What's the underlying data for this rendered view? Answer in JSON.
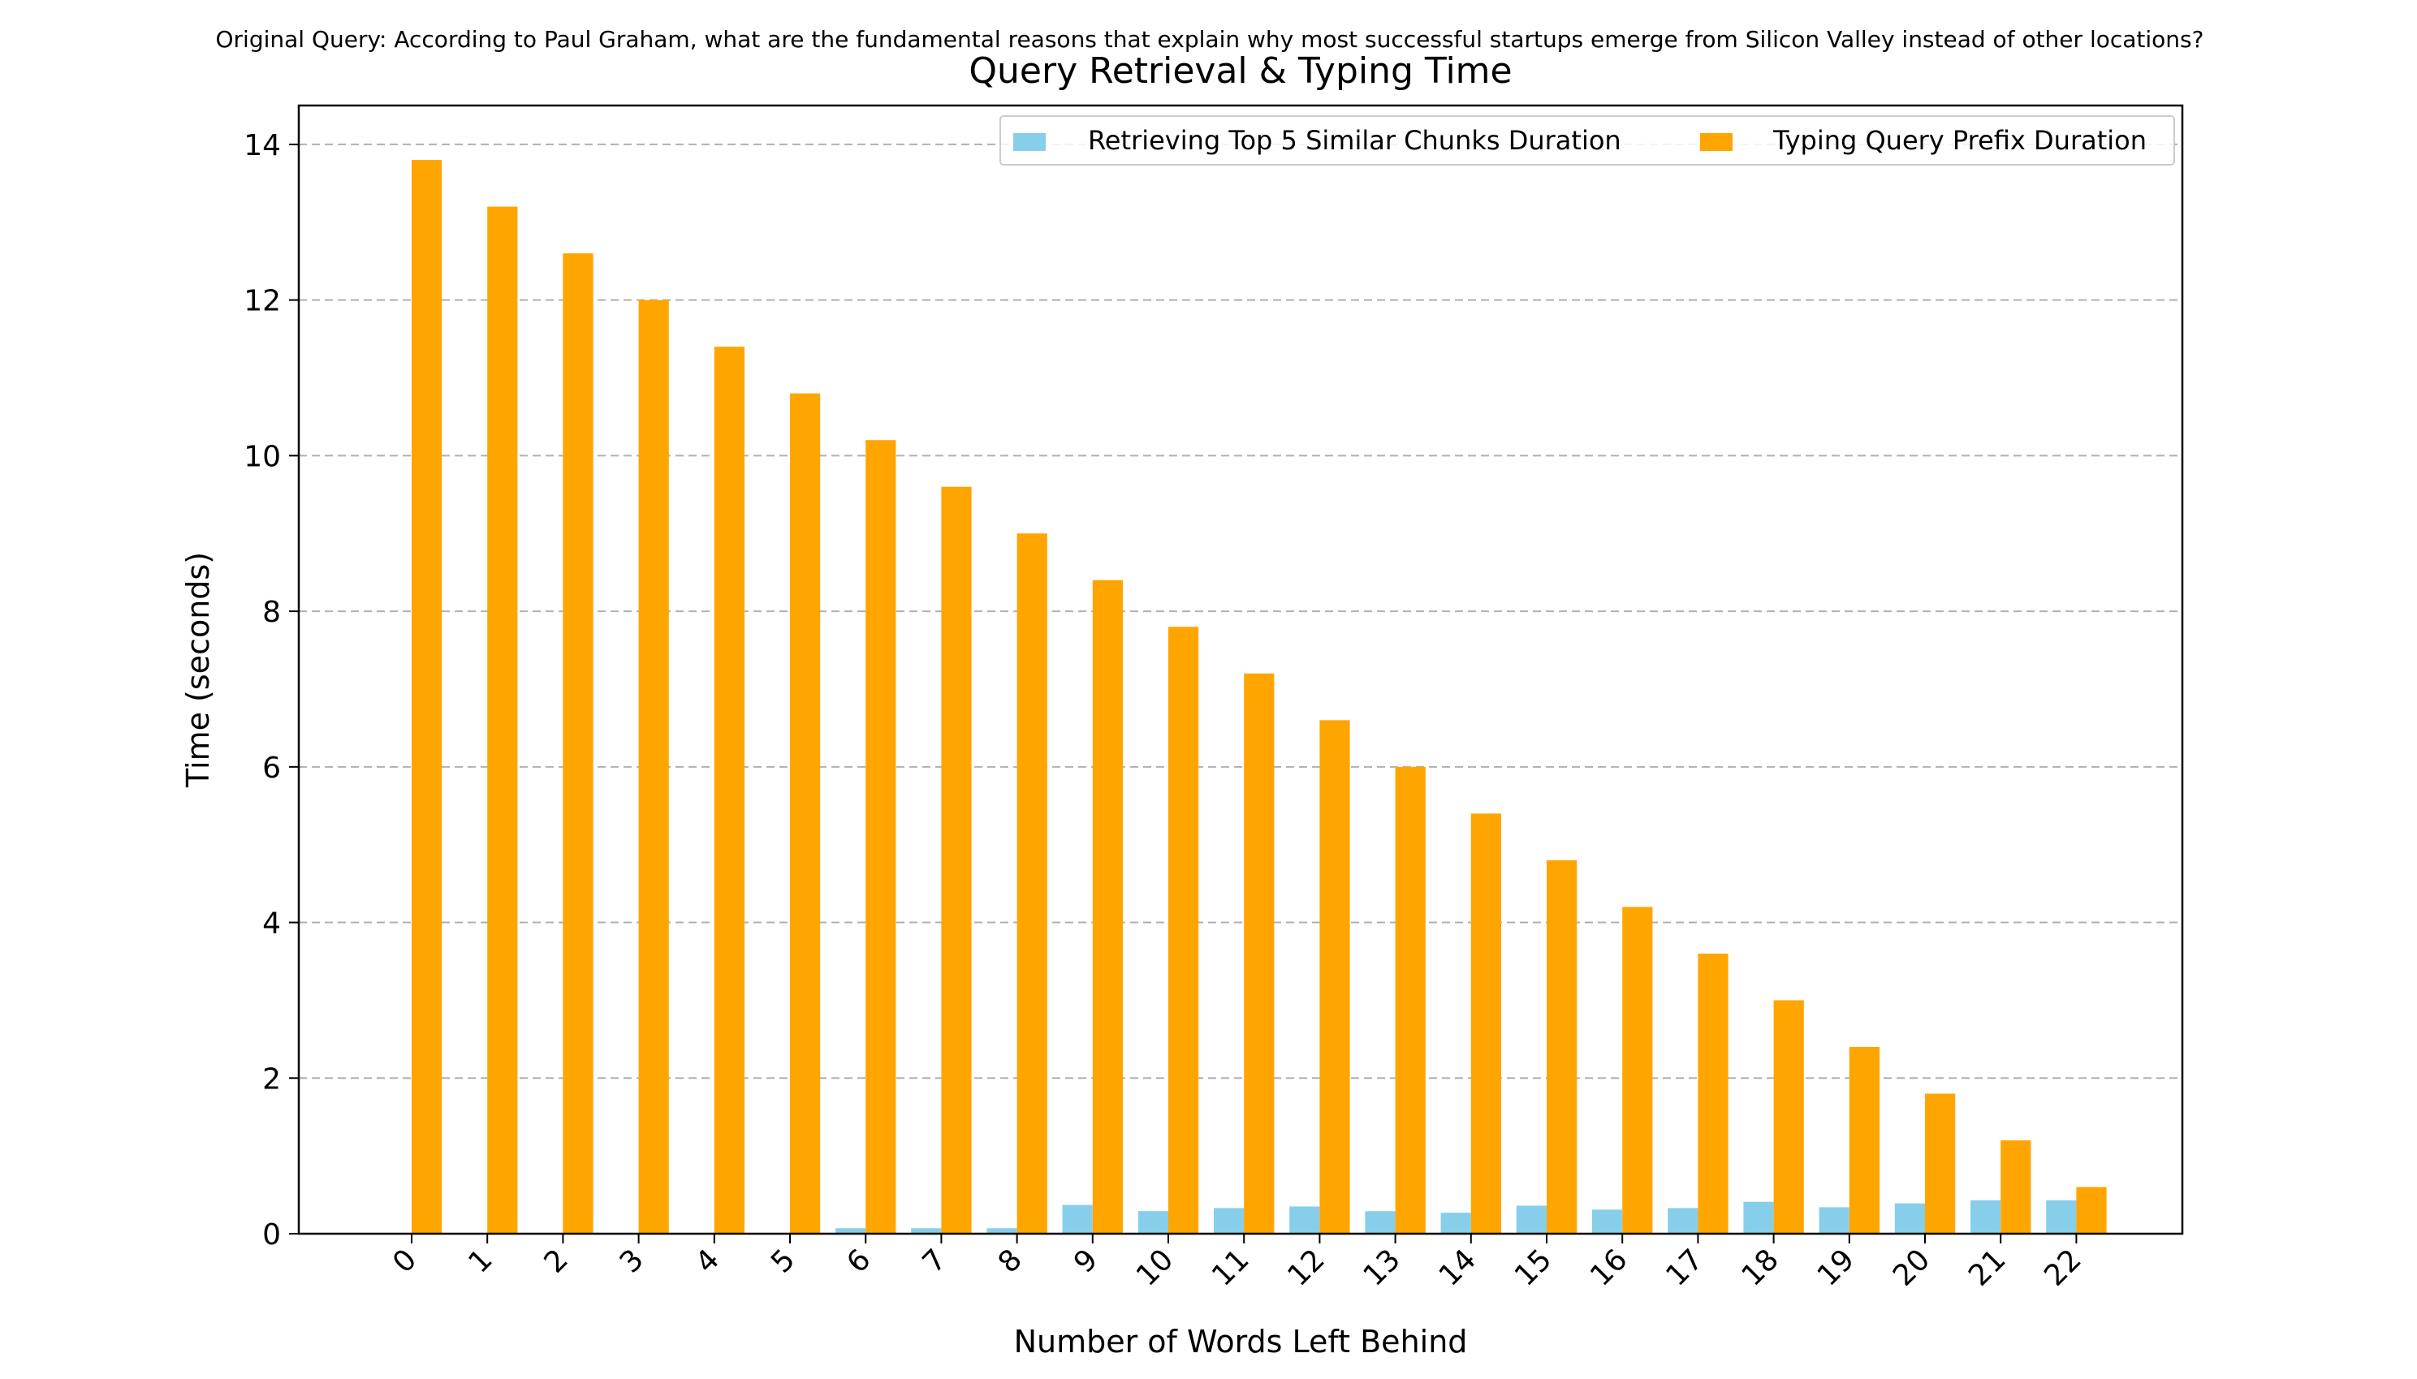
{
  "chart_data": {
    "type": "bar",
    "suptitle": "Original Query: According to Paul Graham, what are the fundamental reasons that explain why most successful startups emerge from Silicon Valley instead of other locations?",
    "title": "Query Retrieval & Typing Time",
    "xlabel": "Number of Words Left Behind",
    "ylabel": "Time (seconds)",
    "categories": [
      "0",
      "1",
      "2",
      "3",
      "4",
      "5",
      "6",
      "7",
      "8",
      "9",
      "10",
      "11",
      "12",
      "13",
      "14",
      "15",
      "16",
      "17",
      "18",
      "19",
      "20",
      "21",
      "22"
    ],
    "ylim": [
      0,
      14.5
    ],
    "yticks": [
      0,
      2,
      4,
      6,
      8,
      10,
      12,
      14
    ],
    "grid": "y-dashed",
    "legend_position": "top-right",
    "series": [
      {
        "name": "Retrieving Top 5 Similar Chunks Duration",
        "color": "#87ceeb",
        "values": [
          0,
          0,
          0,
          0,
          0,
          0,
          0.07,
          0.07,
          0.07,
          0.37,
          0.29,
          0.33,
          0.35,
          0.29,
          0.27,
          0.36,
          0.31,
          0.33,
          0.41,
          0.34,
          0.39,
          0.43,
          0.43
        ]
      },
      {
        "name": "Typing Query Prefix Duration",
        "color": "#ffa500",
        "values": [
          13.8,
          13.2,
          12.6,
          12.0,
          11.4,
          10.8,
          10.2,
          9.6,
          9.0,
          8.4,
          7.8,
          7.2,
          6.6,
          6.0,
          5.4,
          4.8,
          4.2,
          3.6,
          3.0,
          2.4,
          1.8,
          1.2,
          0.6
        ]
      }
    ]
  }
}
